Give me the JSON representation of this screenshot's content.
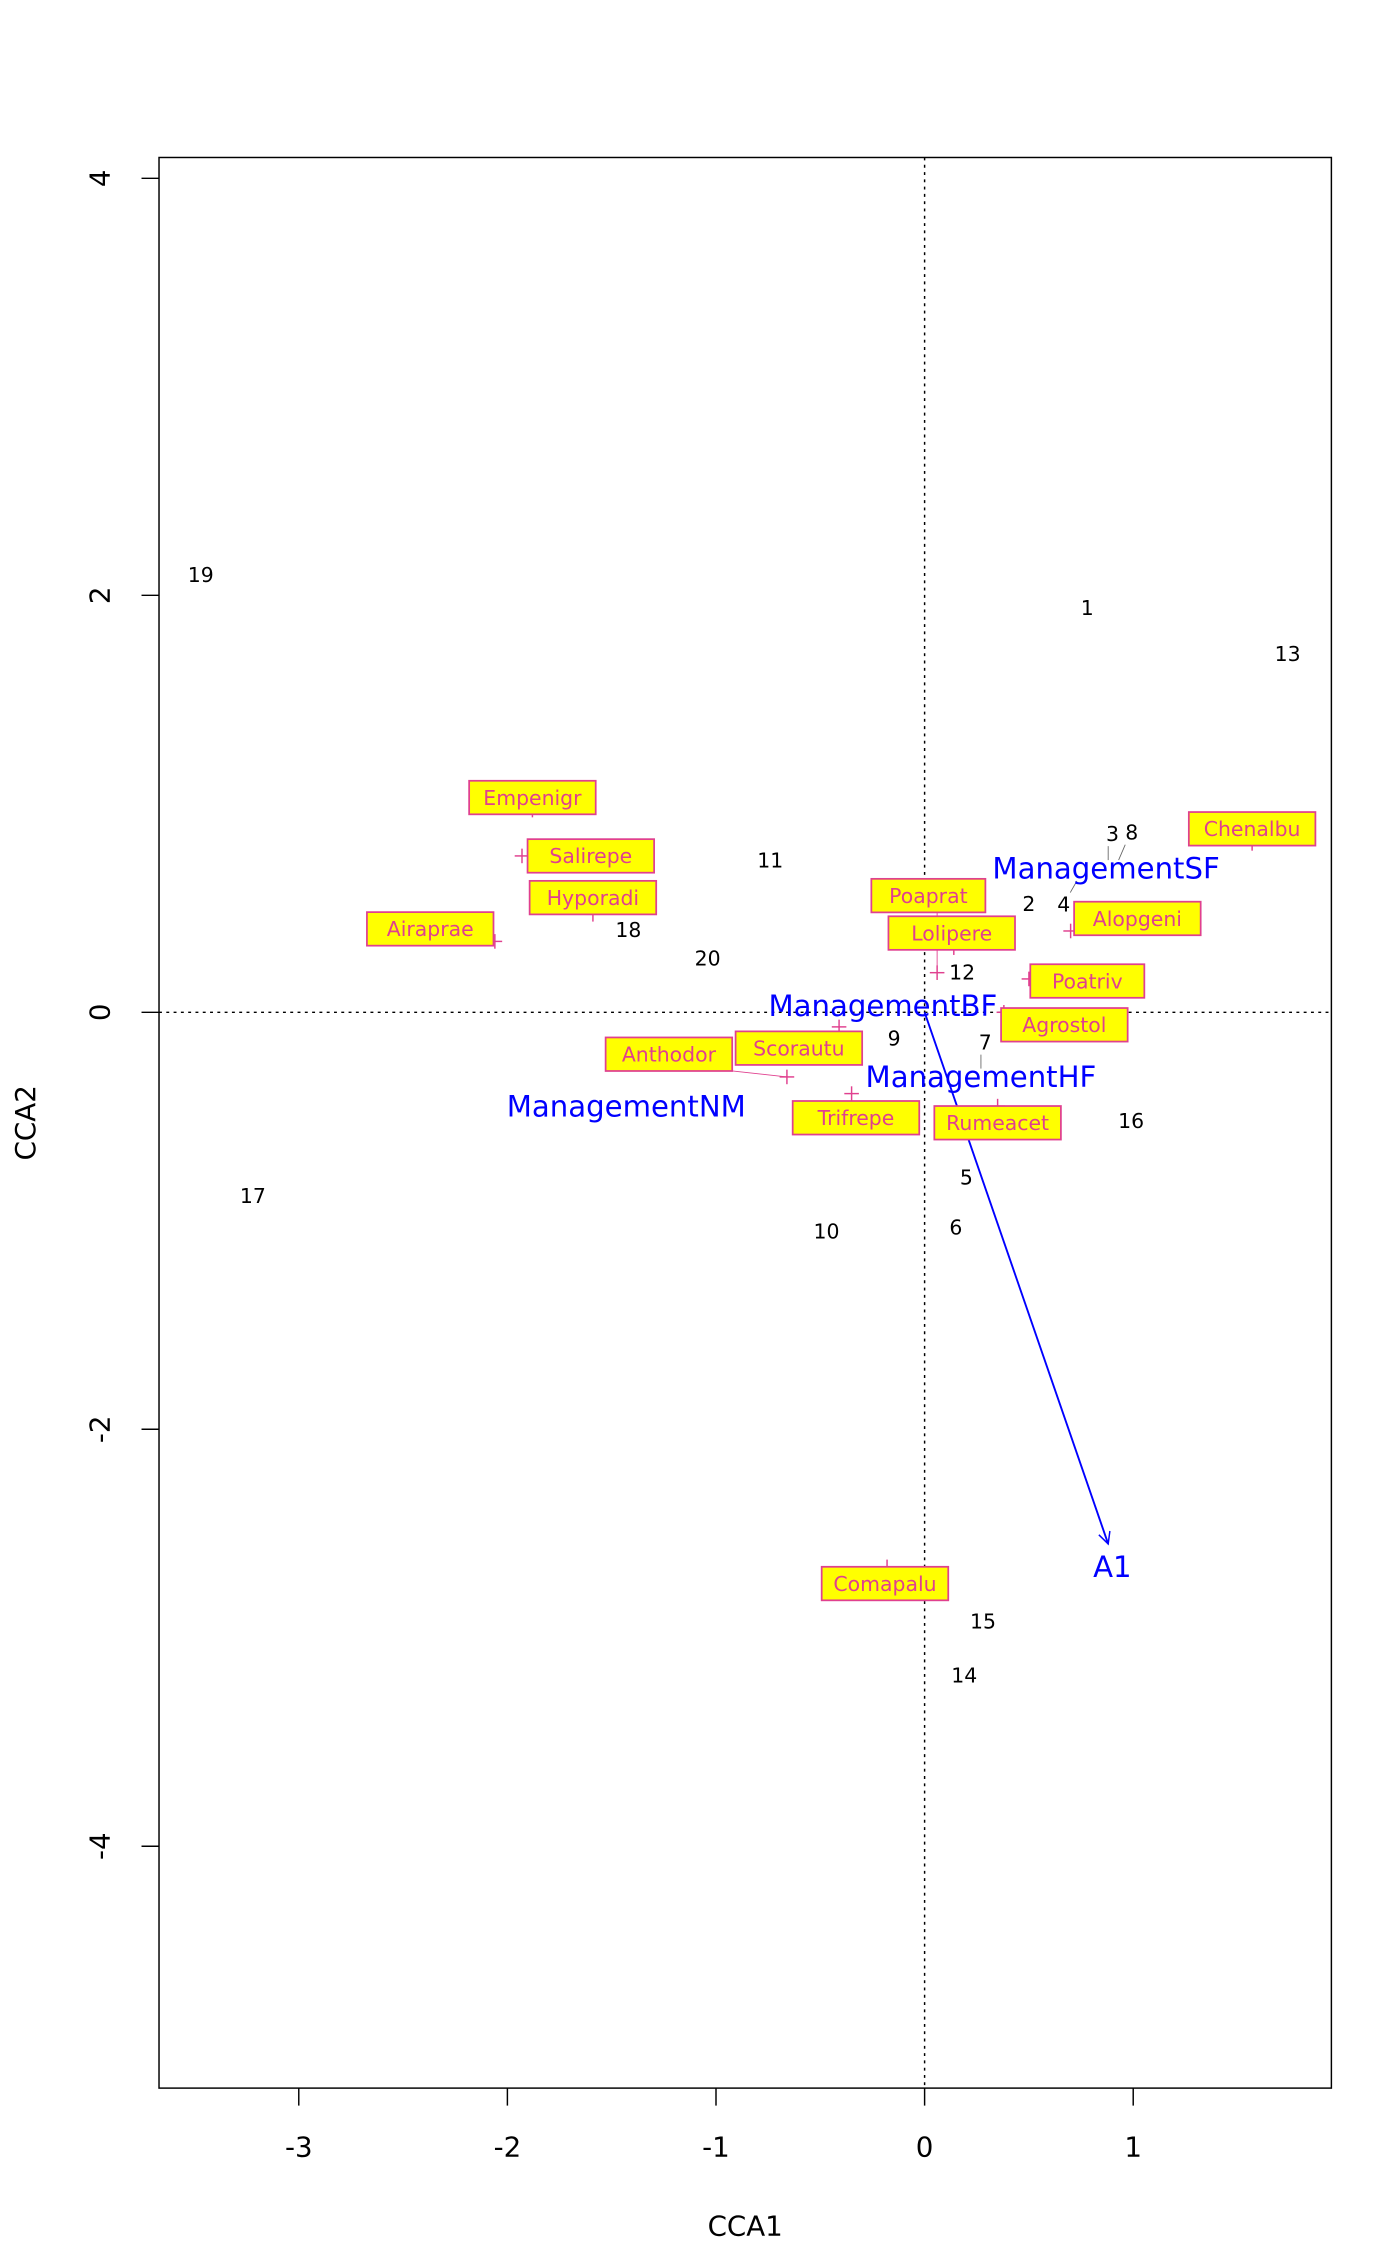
{
  "chart_data": {
    "type": "scatter",
    "title": "",
    "xlabel": "CCA1",
    "ylabel": "CCA2",
    "xlim": [
      -3.67,
      1.95
    ],
    "ylim": [
      -5.16,
      4.1
    ],
    "x_ticks": [
      -3,
      -2,
      -1,
      0,
      1
    ],
    "y_ticks": [
      -4,
      -2,
      0,
      2,
      4
    ],
    "x_tick_labels": [
      "-3",
      "-2",
      "-1",
      "0",
      "1"
    ],
    "y_tick_labels": [
      "-4",
      "-2",
      "0",
      "2",
      "4"
    ],
    "reference_lines": {
      "x": 0,
      "y": 0,
      "style": "dotted"
    },
    "colors": {
      "sites": "#000000",
      "species_text": "#e0408f",
      "species_box": "#ffff00",
      "centroids": "#0000ff",
      "biplot": "#0000ff"
    },
    "sites": [
      {
        "label": "19",
        "x": -3.47,
        "y": 2.1
      },
      {
        "label": "1",
        "x": 0.78,
        "y": 1.94
      },
      {
        "label": "13",
        "x": 1.74,
        "y": 1.72
      },
      {
        "label": "11",
        "x": -0.74,
        "y": 0.73
      },
      {
        "label": "3",
        "x": 0.88,
        "y": 0.73
      },
      {
        "label": "8",
        "x": 0.93,
        "y": 0.73
      },
      {
        "label": "4",
        "x": 0.73,
        "y": 0.63
      },
      {
        "label": "2",
        "x": 0.5,
        "y": 0.52
      },
      {
        "label": "18",
        "x": -1.42,
        "y": 0.46
      },
      {
        "label": "20",
        "x": -1.04,
        "y": 0.26
      },
      {
        "label": "12",
        "x": 0.18,
        "y": 0.13
      },
      {
        "label": "9",
        "x": -0.16,
        "y": -0.11
      },
      {
        "label": "7",
        "x": 0.27,
        "y": -0.27
      },
      {
        "label": "16",
        "x": 0.99,
        "y": -0.52
      },
      {
        "label": "5",
        "x": 0.2,
        "y": -0.79
      },
      {
        "label": "6",
        "x": 0.15,
        "y": -1.03
      },
      {
        "label": "10",
        "x": -0.47,
        "y": -1.05
      },
      {
        "label": "17",
        "x": -3.22,
        "y": -0.88
      },
      {
        "label": "15",
        "x": 0.28,
        "y": -2.92
      },
      {
        "label": "14",
        "x": 0.19,
        "y": -3.18
      }
    ],
    "species": [
      {
        "label": "Empenigr",
        "x": -1.88,
        "y": 0.97,
        "label_x": -1.88,
        "label_y": 1.03
      },
      {
        "label": "Salirepe",
        "x": -1.93,
        "y": 0.75,
        "label_x": -1.6,
        "label_y": 0.75
      },
      {
        "label": "Hyporadi",
        "x": -1.59,
        "y": 0.47,
        "label_x": -1.59,
        "label_y": 0.55
      },
      {
        "label": "Airaprae",
        "x": -2.06,
        "y": 0.34,
        "label_x": -2.37,
        "label_y": 0.4
      },
      {
        "label": "Chenalbu",
        "x": 1.57,
        "y": 0.81,
        "label_x": 1.57,
        "label_y": 0.88
      },
      {
        "label": "Alopgeni",
        "x": 0.7,
        "y": 0.39,
        "label_x": 1.02,
        "label_y": 0.45
      },
      {
        "label": "Lolipere",
        "x": 0.14,
        "y": 0.31,
        "label_x": 0.13,
        "label_y": 0.38
      },
      {
        "label": "Poaprat",
        "x": 0.06,
        "y": 0.19,
        "label_x": 0.06,
        "label_y": 0.14
      },
      {
        "label": "Poatriv",
        "x": 0.5,
        "y": 0.16,
        "label_x": 0.78,
        "label_y": 0.15
      },
      {
        "label": "Agrostol",
        "x": 0.38,
        "y": 0.0,
        "label_x": 0.67,
        "label_y": -0.06
      },
      {
        "label": "Scorautu",
        "x": -0.41,
        "y": -0.07,
        "label_x": -0.4,
        "label_y": -0.13
      },
      {
        "label": "Anthodor",
        "x": -0.66,
        "y": -0.31,
        "label_x": -1.03,
        "label_y": -0.32
      },
      {
        "label": "Trifrepe",
        "x": -0.35,
        "y": -0.39,
        "label_x": -0.35,
        "label_y": -0.38
      },
      {
        "label": "Rumeacet",
        "x": 0.35,
        "y": -0.45,
        "label_x": 0.35,
        "label_y": -0.53
      },
      {
        "label": "Comapalu",
        "x": -0.18,
        "y": -2.66,
        "label_x": -0.19,
        "label_y": -2.74
      }
    ],
    "centroids": [
      {
        "label": "ManagementSF",
        "x": 0.87,
        "y": 0.69
      },
      {
        "label": "ManagementBF",
        "x": -0.2,
        "y": 0.03
      },
      {
        "label": "ManagementHF",
        "x": 0.27,
        "y": -0.31
      },
      {
        "label": "ManagementNM",
        "x": -1.43,
        "y": -0.45
      }
    ],
    "biplot": [
      {
        "label": "A1",
        "x": 0.88,
        "y": -2.55,
        "label_x": 0.9,
        "label_y": -2.66
      }
    ]
  }
}
